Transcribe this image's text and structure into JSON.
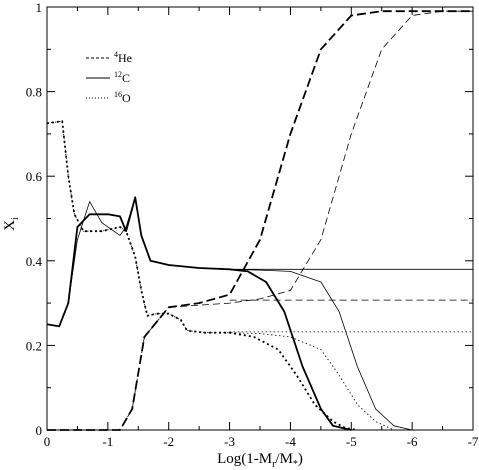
{
  "chart_data": {
    "type": "line",
    "title": "",
    "xlabel": "Log(1-M",
    "xlabel_sub": "r",
    "xlabel_mid": "/M",
    "xlabel_sub2": "*",
    "xlabel_end": ")",
    "ylabel": "X",
    "ylabel_sub": "i",
    "xlim": [
      0,
      -7
    ],
    "ylim": [
      0,
      1
    ],
    "x_ticks": [
      0,
      -1,
      -2,
      -3,
      -4,
      -5,
      -6,
      -7
    ],
    "x_tick_labels": [
      "0",
      "-1",
      "-2",
      "-3",
      "-4",
      "-5",
      "-6",
      "-7"
    ],
    "y_ticks": [
      0,
      0.2,
      0.4,
      0.6,
      0.8,
      1
    ],
    "y_tick_labels": [
      "0",
      "0.2",
      "0.4",
      "0.6",
      "0.8",
      "1"
    ],
    "grid": false,
    "legend_position": "top-left",
    "legend": [
      {
        "iso": "4",
        "el": "He",
        "style": "dashed"
      },
      {
        "iso": "12",
        "el": "C",
        "style": "solid"
      },
      {
        "iso": "16",
        "el": "O",
        "style": "dotted"
      }
    ],
    "series": [
      {
        "element": "He",
        "style": "dashed",
        "width": 1.8,
        "x": [
          0,
          -1.2,
          -1.4,
          -1.6,
          -2.0,
          -2.5,
          -3.0,
          -3.5,
          -4.0,
          -4.5,
          -5.0,
          -5.5,
          -6.0,
          -7.0
        ],
        "y": [
          0,
          0,
          0.05,
          0.22,
          0.29,
          0.3,
          0.32,
          0.45,
          0.7,
          0.9,
          0.98,
          0.99,
          0.99,
          0.99
        ]
      },
      {
        "element": "He",
        "style": "dashed",
        "width": 0.8,
        "x": [
          0,
          -1.2,
          -1.4,
          -1.6,
          -2.0,
          -3.0,
          -3.5,
          -4.0,
          -4.5,
          -5.0,
          -5.5,
          -6.0,
          -6.5,
          -7.0
        ],
        "y": [
          0,
          0,
          0.05,
          0.22,
          0.29,
          0.3,
          0.31,
          0.33,
          0.45,
          0.7,
          0.9,
          0.98,
          0.99,
          0.99
        ]
      },
      {
        "element": "He",
        "style": "dashed",
        "width": 0.8,
        "x": [
          -3.0,
          -7.0
        ],
        "y": [
          0.307,
          0.307
        ]
      },
      {
        "element": "C",
        "style": "solid",
        "width": 1.8,
        "x": [
          0,
          -0.2,
          -0.35,
          -0.5,
          -0.7,
          -1.0,
          -1.2,
          -1.3,
          -1.45,
          -1.55,
          -1.7,
          -2.0,
          -2.5,
          -3.0,
          -3.3,
          -3.6,
          -3.9,
          -4.2,
          -4.5,
          -4.7,
          -5.0
        ],
        "y": [
          0.25,
          0.245,
          0.3,
          0.48,
          0.51,
          0.51,
          0.505,
          0.47,
          0.55,
          0.46,
          0.4,
          0.39,
          0.383,
          0.38,
          0.375,
          0.35,
          0.28,
          0.15,
          0.05,
          0.01,
          0
        ]
      },
      {
        "element": "C",
        "style": "solid",
        "width": 0.8,
        "x": [
          0,
          -0.2,
          -0.35,
          -0.5,
          -0.7,
          -0.9,
          -1.2,
          -1.3,
          -1.45,
          -1.55,
          -1.7,
          -2.0,
          -2.5,
          -3.0,
          -3.5,
          -4.0,
          -4.5,
          -4.8,
          -5.1,
          -5.4,
          -5.7,
          -6.0
        ],
        "y": [
          0.25,
          0.245,
          0.3,
          0.45,
          0.54,
          0.49,
          0.46,
          0.48,
          0.55,
          0.46,
          0.4,
          0.39,
          0.383,
          0.38,
          0.378,
          0.375,
          0.35,
          0.28,
          0.15,
          0.05,
          0.01,
          0
        ]
      },
      {
        "element": "C",
        "style": "solid",
        "width": 0.8,
        "x": [
          -3.0,
          -7.0
        ],
        "y": [
          0.38,
          0.38
        ]
      },
      {
        "element": "O",
        "style": "dotted",
        "width": 1.8,
        "x": [
          0,
          -0.25,
          -0.35,
          -0.45,
          -0.6,
          -0.9,
          -1.2,
          -1.3,
          -1.45,
          -1.55,
          -1.65,
          -1.8,
          -2.0,
          -2.2,
          -2.3,
          -2.6,
          -3.0,
          -3.4,
          -3.8,
          -4.1,
          -4.4,
          -4.7,
          -4.9,
          -5.1
        ],
        "y": [
          0.725,
          0.73,
          0.6,
          0.51,
          0.47,
          0.47,
          0.48,
          0.47,
          0.41,
          0.33,
          0.27,
          0.275,
          0.275,
          0.26,
          0.235,
          0.23,
          0.23,
          0.22,
          0.19,
          0.13,
          0.06,
          0.02,
          0.005,
          0
        ]
      },
      {
        "element": "O",
        "style": "dotted",
        "width": 0.8,
        "x": [
          0,
          -0.25,
          -0.35,
          -0.45,
          -0.6,
          -0.9,
          -1.2,
          -1.3,
          -1.45,
          -1.55,
          -1.65,
          -1.8,
          -2.0,
          -2.2,
          -2.3,
          -2.6,
          -3.0,
          -3.5,
          -4.0,
          -4.5,
          -4.8,
          -5.1,
          -5.4,
          -5.7
        ],
        "y": [
          0.725,
          0.73,
          0.6,
          0.51,
          0.47,
          0.47,
          0.48,
          0.47,
          0.41,
          0.33,
          0.27,
          0.275,
          0.275,
          0.26,
          0.235,
          0.23,
          0.23,
          0.228,
          0.22,
          0.19,
          0.13,
          0.06,
          0.02,
          0
        ]
      },
      {
        "element": "O",
        "style": "dotted",
        "width": 0.8,
        "x": [
          -3.0,
          -7.0
        ],
        "y": [
          0.232,
          0.232
        ]
      }
    ]
  }
}
